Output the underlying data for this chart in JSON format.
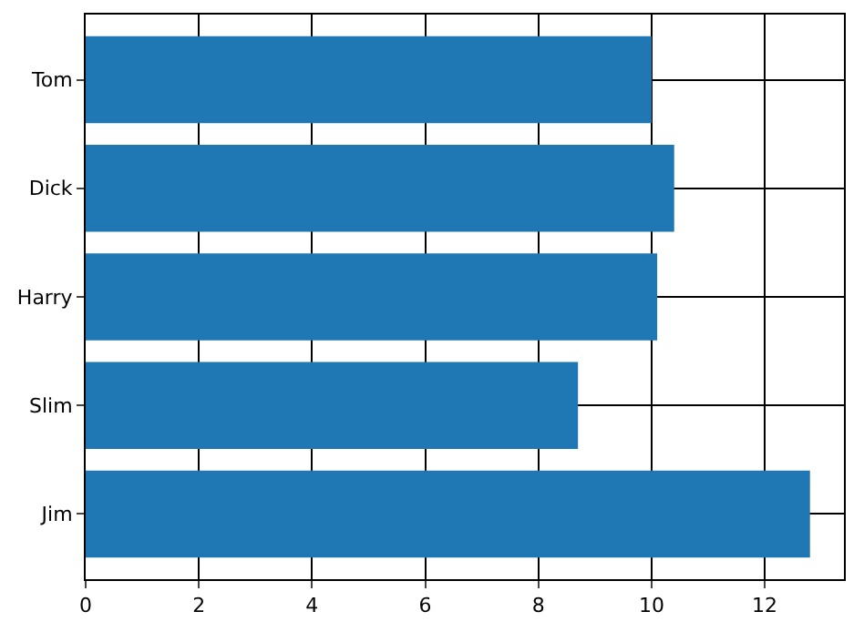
{
  "chart_data": {
    "type": "bar",
    "orientation": "horizontal",
    "categories": [
      "Tom",
      "Dick",
      "Harry",
      "Slim",
      "Jim"
    ],
    "values": [
      10.0,
      10.4,
      10.1,
      8.7,
      12.8
    ],
    "color": "#1f77b4",
    "xlim": [
      0,
      13.4
    ],
    "xticks": [
      0,
      2,
      4,
      6,
      8,
      10,
      12
    ],
    "grid": true,
    "legend": false
  }
}
